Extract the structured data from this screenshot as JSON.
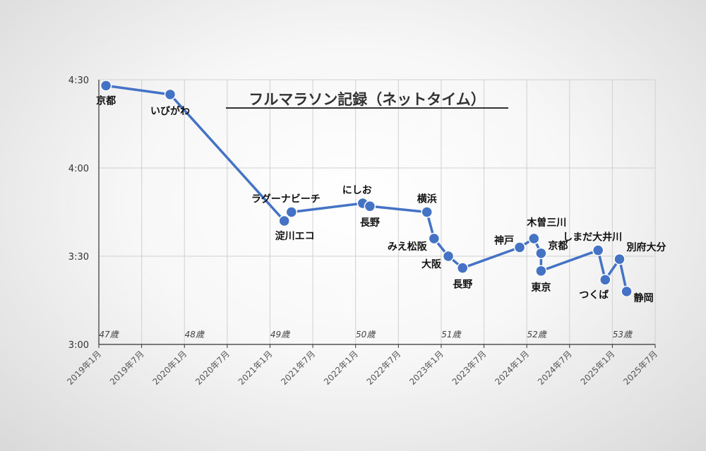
{
  "chart_data": {
    "type": "line",
    "title": "フルマラソン記録（ネットタイム）",
    "xlabel": "",
    "ylabel": "",
    "y_ticks": [
      "3:00",
      "3:30",
      "4:00",
      "4:30"
    ],
    "ylim_minutes": [
      180,
      270
    ],
    "x_ticks": [
      "2019年1月",
      "2019年7月",
      "2020年1月",
      "2020年7月",
      "2021年1月",
      "2021年7月",
      "2022年1月",
      "2022年7月",
      "2023年1月",
      "2023年7月",
      "2024年1月",
      "2024年7月",
      "2025年1月",
      "2025年7月"
    ],
    "xlim": [
      "2019-01",
      "2025-07"
    ],
    "grid": true,
    "line_color": "#4472C4",
    "age_labels": [
      {
        "label": "47歳",
        "x": "2019-01"
      },
      {
        "label": "48歳",
        "x": "2020-01"
      },
      {
        "label": "49歳",
        "x": "2021-01"
      },
      {
        "label": "50歳",
        "x": "2022-01"
      },
      {
        "label": "51歳",
        "x": "2023-01"
      },
      {
        "label": "52歳",
        "x": "2024-01"
      },
      {
        "label": "53歳",
        "x": "2025-01"
      }
    ],
    "points": [
      {
        "x": "2019-02",
        "y": "4:28",
        "label": "京都"
      },
      {
        "x": "2019-11",
        "y": "4:25",
        "label": "いびがわ"
      },
      {
        "x": "2021-03",
        "y": "3:42",
        "label": "淀川エコ"
      },
      {
        "x": "2021-04",
        "y": "3:45",
        "label": "ラグーナビーチ"
      },
      {
        "x": "2022-02",
        "y": "3:48",
        "label": "にしお"
      },
      {
        "x": "2022-03",
        "y": "3:47",
        "label": "長野"
      },
      {
        "x": "2022-11",
        "y": "3:45",
        "label": "横浜"
      },
      {
        "x": "2022-12",
        "y": "3:36",
        "label": "みえ松阪"
      },
      {
        "x": "2023-02",
        "y": "3:30",
        "label": "大阪"
      },
      {
        "x": "2023-04",
        "y": "3:26",
        "label": "長野"
      },
      {
        "x": "2023-12",
        "y": "3:33",
        "label": "神戸"
      },
      {
        "x": "2024-02",
        "y": "3:36",
        "label": "木曽三川"
      },
      {
        "x": "2024-03",
        "y": "3:31",
        "label": "京都"
      },
      {
        "x": "2024-03",
        "y": "3:25",
        "label": "東京"
      },
      {
        "x": "2024-11",
        "y": "3:32",
        "label": "しまだ大井川"
      },
      {
        "x": "2024-12",
        "y": "3:22",
        "label": "つくば"
      },
      {
        "x": "2025-02",
        "y": "3:29",
        "label": "別府大分"
      },
      {
        "x": "2025-03",
        "y": "3:18",
        "label": "静岡"
      }
    ]
  }
}
